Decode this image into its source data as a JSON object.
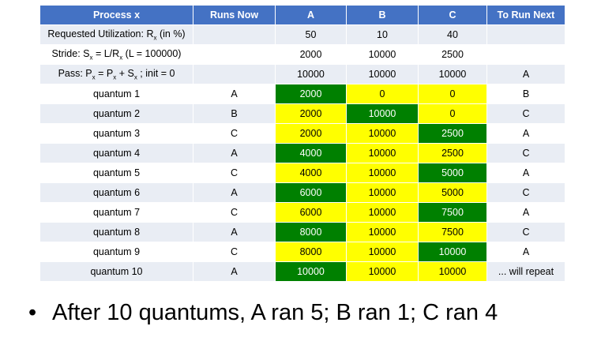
{
  "table": {
    "headers": [
      "Process x",
      "Runs Now",
      "A",
      "B",
      "C",
      "To Run Next"
    ],
    "meta_rows": [
      {
        "label": "Requested Utilization: Rx (in %)",
        "label_html": "Requested Utilization: R<sub>x</sub> (in %)",
        "runs_now": "",
        "a": "50",
        "b": "10",
        "c": "40",
        "next": ""
      },
      {
        "label": "Stride: Sx = L/Rx (L = 100000)",
        "label_html": "Stride: S<sub>x</sub> = L/R<sub>x</sub> (L = 100000)",
        "runs_now": "",
        "a": "2000",
        "b": "10000",
        "c": "2500",
        "next": ""
      },
      {
        "label": "Pass: Px = Px + Sx ; init = 0",
        "label_html": "Pass: P<sub>x</sub> = P<sub>x</sub> + S<sub>x</sub> ; init = 0",
        "runs_now": "",
        "a": "10000",
        "b": "10000",
        "c": "10000",
        "next": "A"
      }
    ],
    "quantum_rows": [
      {
        "label": "quantum 1",
        "runs_now": "A",
        "a": "2000",
        "b": "0",
        "c": "0",
        "next": "B",
        "colors": [
          "g",
          "y",
          "y"
        ]
      },
      {
        "label": "quantum 2",
        "runs_now": "B",
        "a": "2000",
        "b": "10000",
        "c": "0",
        "next": "C",
        "colors": [
          "y",
          "g",
          "y"
        ]
      },
      {
        "label": "quantum 3",
        "runs_now": "C",
        "a": "2000",
        "b": "10000",
        "c": "2500",
        "next": "A",
        "colors": [
          "y",
          "y",
          "g"
        ]
      },
      {
        "label": "quantum 4",
        "runs_now": "A",
        "a": "4000",
        "b": "10000",
        "c": "2500",
        "next": "C",
        "colors": [
          "g",
          "y",
          "y"
        ]
      },
      {
        "label": "quantum 5",
        "runs_now": "C",
        "a": "4000",
        "b": "10000",
        "c": "5000",
        "next": "A",
        "colors": [
          "y",
          "y",
          "g"
        ]
      },
      {
        "label": "quantum 6",
        "runs_now": "A",
        "a": "6000",
        "b": "10000",
        "c": "5000",
        "next": "C",
        "colors": [
          "g",
          "y",
          "y"
        ]
      },
      {
        "label": "quantum 7",
        "runs_now": "C",
        "a": "6000",
        "b": "10000",
        "c": "7500",
        "next": "A",
        "colors": [
          "y",
          "y",
          "g"
        ]
      },
      {
        "label": "quantum 8",
        "runs_now": "A",
        "a": "8000",
        "b": "10000",
        "c": "7500",
        "next": "C",
        "colors": [
          "g",
          "y",
          "y"
        ]
      },
      {
        "label": "quantum 9",
        "runs_now": "C",
        "a": "8000",
        "b": "10000",
        "c": "10000",
        "next": "A",
        "colors": [
          "y",
          "y",
          "g"
        ]
      },
      {
        "label": "quantum 10",
        "runs_now": "A",
        "a": "10000",
        "b": "10000",
        "c": "10000",
        "next": "... will repeat",
        "colors": [
          "g",
          "y",
          "y"
        ]
      }
    ],
    "colors": {
      "header": "#4472c4",
      "band": "#e9edf4",
      "ran": "#008000",
      "waiting": "#ffff00"
    }
  },
  "summary": {
    "bullet_glyph": "•",
    "text": "After 10 quantums, A ran 5; B ran 1; C ran 4"
  }
}
